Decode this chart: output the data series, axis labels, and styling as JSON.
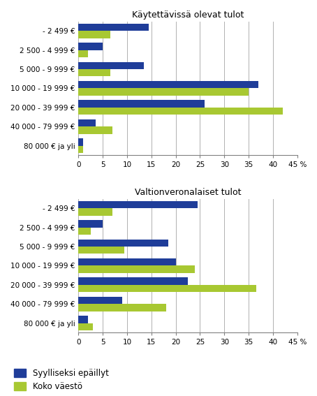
{
  "top_title": "Käytettävissä olevat tulot",
  "bottom_title": "Valtionveronalaiset tulot",
  "categories": [
    "- 2 499 €",
    "2 500 - 4 999 €",
    "5 000 - 9 999 €",
    "10 000 - 19 999 €",
    "20 000 - 39 999 €",
    "40 000 - 79 999 €",
    "80 000 € ja yli"
  ],
  "top_blue": [
    14.5,
    5.0,
    13.5,
    37.0,
    26.0,
    3.5,
    1.0
  ],
  "top_green": [
    6.5,
    2.0,
    6.5,
    35.0,
    42.0,
    7.0,
    1.0
  ],
  "bottom_blue": [
    24.5,
    5.0,
    18.5,
    20.0,
    22.5,
    9.0,
    2.0
  ],
  "bottom_green": [
    7.0,
    2.5,
    9.5,
    24.0,
    36.5,
    18.0,
    3.0
  ],
  "blue_color": "#1f3d99",
  "green_color": "#a8c832",
  "legend_labels": [
    "Syylliseksi epäillyt",
    "Koko väestö"
  ],
  "xlim": [
    0,
    45
  ],
  "xticks": [
    0,
    5,
    10,
    15,
    20,
    25,
    30,
    35,
    40,
    45
  ],
  "background_color": "#ffffff",
  "grid_color": "#b0b0b0",
  "title_fontsize": 9,
  "tick_fontsize": 7.5,
  "legend_fontsize": 8.5,
  "bar_height": 0.38
}
